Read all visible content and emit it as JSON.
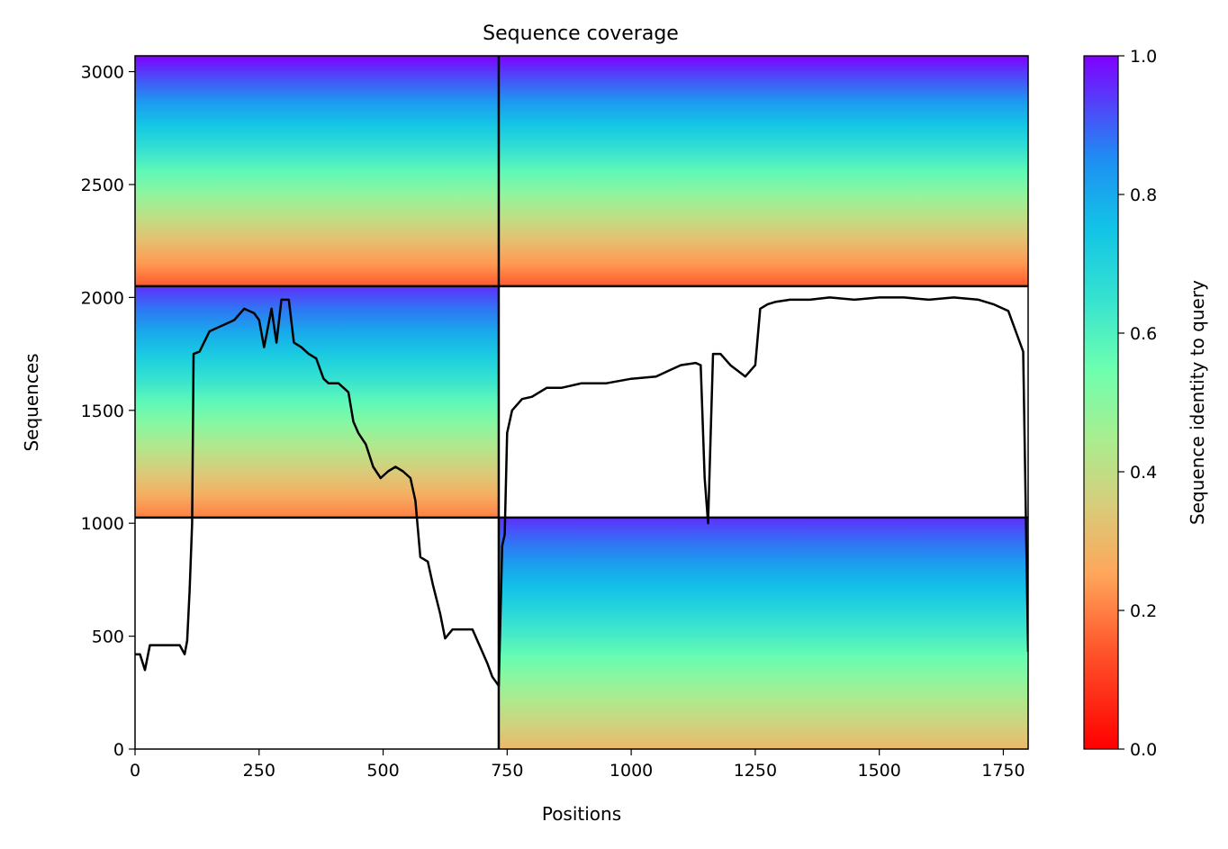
{
  "chart_data": {
    "type": "heatmap",
    "title": "Sequence coverage",
    "xlabel": "Positions",
    "ylabel": "Sequences",
    "xlim": [
      0,
      1800
    ],
    "ylim": [
      0,
      3070
    ],
    "xticks": [
      0,
      250,
      500,
      750,
      1000,
      1250,
      1500,
      1750
    ],
    "yticks": [
      0,
      500,
      1000,
      1500,
      2000,
      2500,
      3000
    ],
    "colorbar": {
      "label": "Sequence identity to query",
      "colormap": "rainbow_r",
      "range": [
        0,
        1
      ],
      "ticks": [
        "0.0",
        "0.2",
        "0.4",
        "0.6",
        "0.8",
        "1.0"
      ]
    },
    "chain_boundaries": {
      "x": [
        733
      ],
      "y": [
        1025,
        2050
      ]
    },
    "blocks": [
      {
        "name": "chain-A-block",
        "x_range": [
          0,
          733
        ],
        "y_range": [
          2050,
          3070
        ],
        "identity_top": 1.0,
        "identity_bottom": 0.15
      },
      {
        "name": "chain-B-block",
        "x_range": [
          733,
          1800
        ],
        "y_range": [
          2050,
          3070
        ],
        "identity_top": 1.0,
        "identity_bottom": 0.15
      },
      {
        "name": "chain-A-only-block",
        "x_range": [
          0,
          733
        ],
        "y_range": [
          1025,
          2050
        ],
        "identity_top": 0.95,
        "identity_bottom": 0.2
      },
      {
        "name": "chain-B-only-block",
        "x_range": [
          733,
          1800
        ],
        "y_range": [
          0,
          1025
        ],
        "identity_top": 0.95,
        "identity_bottom": 0.3
      }
    ],
    "coverage_line": {
      "name": "coverage",
      "color": "#000000",
      "x": [
        0,
        10,
        20,
        30,
        50,
        70,
        90,
        100,
        105,
        110,
        115,
        118,
        130,
        150,
        170,
        200,
        220,
        240,
        250,
        260,
        275,
        285,
        295,
        310,
        320,
        335,
        350,
        365,
        380,
        390,
        410,
        430,
        440,
        450,
        465,
        480,
        495,
        510,
        525,
        540,
        555,
        565,
        575,
        590,
        600,
        615,
        625,
        640,
        660,
        680,
        700,
        710,
        720,
        733,
        740,
        745,
        750,
        760,
        780,
        800,
        830,
        860,
        900,
        950,
        1000,
        1050,
        1080,
        1100,
        1130,
        1140,
        1148,
        1155,
        1165,
        1180,
        1200,
        1230,
        1250,
        1260,
        1275,
        1290,
        1320,
        1360,
        1400,
        1450,
        1500,
        1550,
        1600,
        1650,
        1700,
        1730,
        1760,
        1780,
        1790,
        1795,
        1800
      ],
      "y": [
        420,
        420,
        350,
        460,
        460,
        460,
        460,
        420,
        480,
        700,
        1000,
        1750,
        1760,
        1850,
        1870,
        1900,
        1950,
        1930,
        1900,
        1780,
        1950,
        1800,
        1990,
        1990,
        1800,
        1780,
        1750,
        1730,
        1640,
        1620,
        1620,
        1580,
        1450,
        1400,
        1350,
        1250,
        1200,
        1230,
        1250,
        1230,
        1200,
        1100,
        850,
        830,
        730,
        600,
        490,
        530,
        530,
        530,
        430,
        380,
        320,
        280,
        900,
        950,
        1400,
        1500,
        1550,
        1560,
        1600,
        1600,
        1620,
        1620,
        1640,
        1650,
        1680,
        1700,
        1710,
        1700,
        1200,
        1000,
        1750,
        1750,
        1700,
        1650,
        1700,
        1950,
        1970,
        1980,
        1990,
        1990,
        2000,
        1990,
        2000,
        2000,
        1990,
        2000,
        1990,
        1970,
        1940,
        1820,
        1760,
        1100,
        430
      ]
    }
  }
}
